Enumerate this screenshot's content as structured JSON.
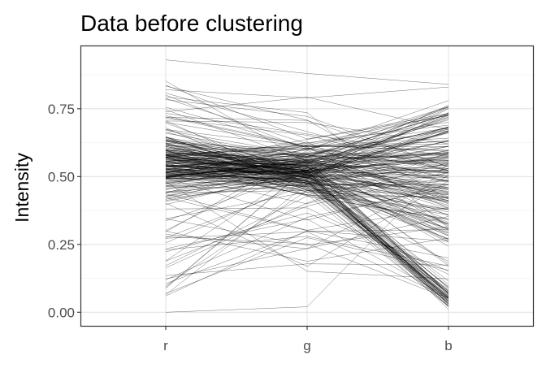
{
  "chart_data": {
    "type": "line",
    "title": "Data before clustering",
    "xlabel": "",
    "ylabel": "Intensity",
    "categories": [
      "r",
      "g",
      "b"
    ],
    "yticks": [
      0.0,
      0.25,
      0.5,
      0.75
    ],
    "ytick_labels": [
      "0.00",
      "0.25",
      "0.50",
      "0.75"
    ],
    "ylim": [
      -0.05,
      0.98
    ],
    "grid": true,
    "line_color": "#000000",
    "series_count": 260,
    "series_sample": [
      {
        "values": [
          0.93,
          0.88,
          0.84
        ]
      },
      {
        "values": [
          0.82,
          0.79,
          0.83
        ]
      },
      {
        "values": [
          0.8,
          0.6,
          0.78
        ]
      },
      {
        "values": [
          0.6,
          0.52,
          0.01
        ]
      },
      {
        "values": [
          0.55,
          0.5,
          0.04
        ]
      },
      {
        "values": [
          0.5,
          0.55,
          0.46
        ]
      },
      {
        "values": [
          0.23,
          0.28,
          0.17
        ]
      },
      {
        "values": [
          0.12,
          0.35,
          0.46
        ]
      },
      {
        "values": [
          0.06,
          0.3,
          0.2
        ]
      },
      {
        "values": [
          0.0,
          0.02,
          0.55
        ]
      }
    ]
  }
}
